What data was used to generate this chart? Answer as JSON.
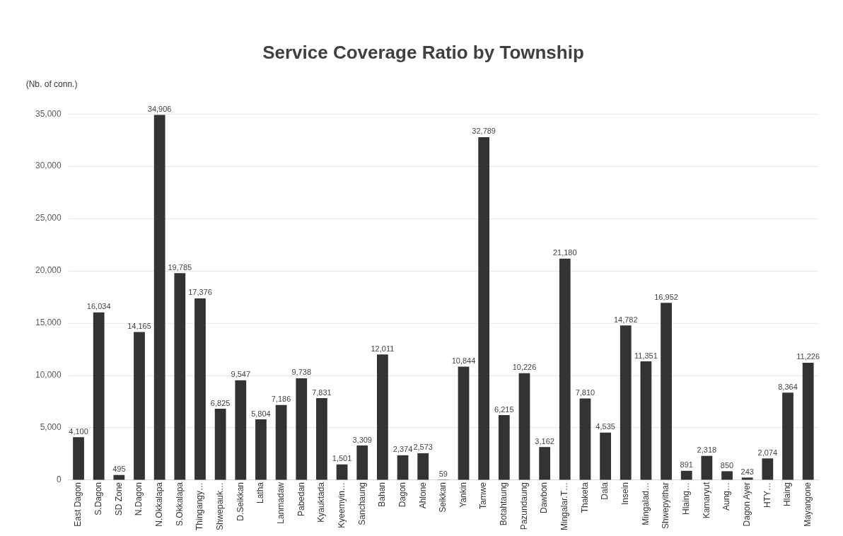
{
  "chart_data": {
    "type": "bar",
    "title": "Service Coverage Ratio by Township",
    "ylabel": "(Nb. of conn.)",
    "categories": [
      "East Dagon",
      "S.Dagon",
      "SD Zone",
      "N.Dagon",
      "N.Okkalapa",
      "S.Okkalapa",
      "Thingangy…",
      "Shwepauk…",
      "D.Seikkan",
      "Latha",
      "Lanmadaw",
      "Pabedan",
      "Kyauktada",
      "Kyeemyin…",
      "Sanchaung",
      "Bahan",
      "Dagon",
      "Ahlone",
      "Seikkan",
      "Yankin",
      "Tamwe",
      "Botahtaung",
      "Pazundaung",
      "Dawbon",
      "Mingalar.T…",
      "Thaketa",
      "Dala",
      "Insein",
      "Mingalad…",
      "Shwepyithar",
      "Hlaing…",
      "Kamaryut",
      "Aung…",
      "Dagon Ayer",
      "HTY…",
      "Hlaing",
      "Mayangone"
    ],
    "values": [
      4100,
      16034,
      495,
      14165,
      34906,
      19785,
      17376,
      6825,
      9547,
      5804,
      7186,
      9738,
      7831,
      1501,
      3309,
      12011,
      2374,
      2573,
      59,
      10844,
      32789,
      6215,
      10226,
      3162,
      21180,
      7810,
      4535,
      14782,
      11351,
      16952,
      891,
      2318,
      850,
      243,
      2074,
      8364,
      11226
    ],
    "color": "#333333",
    "ylim": [
      0,
      35000
    ],
    "yticks": [
      {
        "value": 0,
        "label": "0"
      },
      {
        "value": 5000,
        "label": "5,000"
      },
      {
        "value": 10000,
        "label": "10,000"
      },
      {
        "value": 15000,
        "label": "15,000"
      },
      {
        "value": 20000,
        "label": "20,000"
      },
      {
        "value": 25000,
        "label": "25,000"
      },
      {
        "value": 30000,
        "label": "30,000"
      },
      {
        "value": 35000,
        "label": "35,000"
      }
    ],
    "grid": "y",
    "value_labels": [
      "4,100",
      "16,034",
      "495",
      "14,165",
      "34,906",
      "19,785",
      "17,376",
      "6,825",
      "9,547",
      "5,804",
      "7,186",
      "9,738",
      "7,831",
      "1,501",
      "3,309",
      "12,011",
      "2,374",
      "2,573",
      "59",
      "10,844",
      "32,789",
      "6,215",
      "10,226",
      "3,162",
      "21,180",
      "7,810",
      "4,535",
      "14,782",
      "11,351",
      "16,952",
      "891",
      "2,318",
      "850",
      "243",
      "2,074",
      "8,364",
      "11,226"
    ]
  }
}
